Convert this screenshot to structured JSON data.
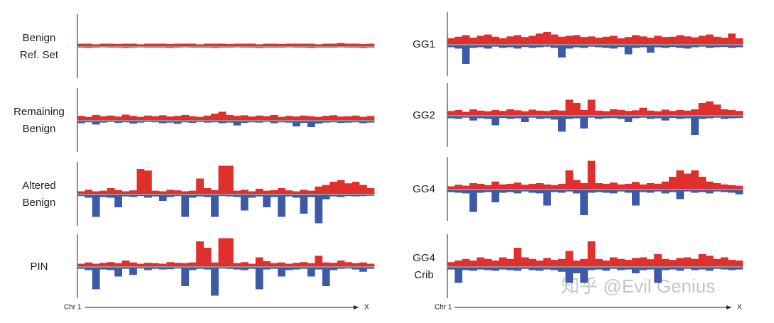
{
  "chart_data": [
    {
      "type": "area",
      "title": [
        "Benign",
        "Ref. Set"
      ],
      "ylim": [
        -10,
        10
      ],
      "series": [
        {
          "color": "#e0302e",
          "values": [
            1,
            1,
            0.8,
            1,
            1,
            0.9,
            1,
            1,
            0.8,
            1,
            1,
            1,
            0.9,
            1,
            1,
            1,
            0.8,
            1,
            1,
            1,
            0.9,
            1,
            1,
            1,
            0.8,
            1,
            1,
            0.9,
            1,
            1,
            1,
            1,
            0.8,
            1,
            1,
            1.2,
            1,
            1,
            0.9,
            1
          ]
        },
        {
          "color": "#3c5aa8",
          "values": [
            -0.3,
            -0.4,
            -0.3,
            -0.2,
            -0.3,
            -0.3,
            -0.4,
            -0.3,
            -0.2,
            -0.3,
            -0.3,
            -0.3,
            -0.4,
            -0.3,
            -0.2,
            -0.3,
            -0.3,
            -0.3,
            -0.4,
            -0.3,
            -0.3,
            -0.2,
            -0.3,
            -0.3,
            -0.4,
            -0.3,
            -0.3,
            -0.3,
            -0.2,
            -0.3,
            -0.3,
            -0.4,
            -0.3,
            -0.3,
            -0.3,
            -0.2,
            -0.3,
            -0.3,
            -0.4,
            -0.3
          ]
        }
      ]
    },
    {
      "type": "area",
      "title": [
        "Remaining",
        "Benign"
      ],
      "ylim": [
        -10,
        10
      ],
      "series": [
        {
          "color": "#e0302e",
          "values": [
            1.5,
            1.2,
            1.8,
            1.4,
            1.6,
            1.3,
            1.9,
            1.5,
            1.2,
            1.6,
            1.4,
            1.7,
            1.3,
            1.5,
            1.8,
            1.4,
            1.2,
            1.6,
            2.2,
            2.8,
            1.8,
            1.5,
            1.7,
            1.3,
            1.6,
            1.4,
            1.8,
            1.2,
            1.5,
            1.3,
            1.6,
            1.4,
            1.2,
            1.5,
            1.7,
            1.3,
            1.4,
            1.6,
            1.2,
            1.5
          ]
        },
        {
          "color": "#3c5aa8",
          "values": [
            -0.8,
            -0.5,
            -1.2,
            -0.6,
            -0.4,
            -0.7,
            -0.5,
            -0.9,
            -0.6,
            -0.4,
            -0.5,
            -0.8,
            -0.6,
            -1.0,
            -0.5,
            -0.7,
            -0.4,
            -0.6,
            -0.5,
            -0.8,
            -0.6,
            -1.5,
            -0.7,
            -0.5,
            -0.6,
            -0.4,
            -0.8,
            -0.5,
            -0.6,
            -1.8,
            -0.7,
            -2.0,
            -0.9,
            -0.6,
            -0.5,
            -0.7,
            -0.6,
            -0.5,
            -0.8,
            -0.6
          ]
        }
      ]
    },
    {
      "type": "area",
      "title": [
        "Altered",
        "Benign"
      ],
      "ylim": [
        -10,
        10
      ],
      "series": [
        {
          "color": "#e0302e",
          "values": [
            1,
            1.5,
            1,
            1.2,
            2,
            1.4,
            1,
            1.3,
            8,
            7.5,
            1.2,
            1,
            1.5,
            1.3,
            1,
            1.2,
            5,
            2,
            1.4,
            9,
            9,
            1.2,
            1.5,
            1,
            1.8,
            1.2,
            1.4,
            2,
            1.3,
            1,
            1.5,
            1.2,
            2.5,
            3,
            4,
            4.5,
            3.5,
            4,
            3,
            2
          ]
        },
        {
          "color": "#3c5aa8",
          "values": [
            -0.5,
            -1,
            -7,
            -0.8,
            -1,
            -4,
            -0.6,
            -0.8,
            -0.5,
            -1,
            -0.6,
            -2,
            -0.8,
            -0.5,
            -7,
            -1,
            -0.6,
            -0.8,
            -7,
            -0.5,
            -0.6,
            -0.8,
            -5,
            -1,
            -0.6,
            -4,
            -0.8,
            -7,
            -0.6,
            -1,
            -6,
            -0.8,
            -9,
            -1.5,
            -0.6,
            -0.8,
            -0.5,
            -0.6,
            -0.5,
            -0.4
          ]
        }
      ]
    },
    {
      "type": "area",
      "title": [
        "PIN"
      ],
      "ylim": [
        -10,
        10
      ],
      "series": [
        {
          "color": "#e0302e",
          "values": [
            1,
            1.4,
            1,
            1.3,
            1.5,
            1.2,
            2,
            1.4,
            1,
            1.3,
            1.2,
            1,
            1.5,
            1.3,
            1.2,
            1.4,
            8,
            6,
            1.4,
            9,
            9,
            1.2,
            1.5,
            1,
            3,
            1.8,
            1.2,
            1.4,
            1,
            1.3,
            1.5,
            1.2,
            3.5,
            1.4,
            1.3,
            2,
            1.5,
            1.2,
            1.4,
            1
          ]
        },
        {
          "color": "#3c5aa8",
          "values": [
            -0.6,
            -1,
            -7,
            -0.8,
            -1,
            -3,
            -0.6,
            -2.5,
            -0.5,
            -1,
            -0.6,
            -0.8,
            -0.7,
            -0.5,
            -6,
            -1,
            -0.6,
            -0.8,
            -9,
            -0.5,
            -0.6,
            -0.8,
            -1,
            -0.6,
            -7,
            -0.8,
            -0.6,
            -3,
            -1,
            -0.8,
            -0.6,
            -3,
            -0.8,
            -6,
            -1,
            -0.6,
            -0.5,
            -0.8,
            -1.5,
            -0.6
          ]
        }
      ]
    },
    {
      "type": "area",
      "title": [
        "GG1"
      ],
      "ylim": [
        -10,
        10
      ],
      "series": [
        {
          "color": "#e0302e",
          "values": [
            2,
            2.5,
            3,
            2.2,
            2.8,
            3.2,
            2.5,
            2,
            2.6,
            3,
            2.4,
            2.8,
            3.5,
            4,
            3.2,
            2.5,
            2.8,
            3,
            2.4,
            2.6,
            2.2,
            2.5,
            2.8,
            2,
            2.4,
            3,
            2.6,
            2.2,
            2.8,
            2.4,
            2.5,
            3,
            2.6,
            2.3,
            2.8,
            3.2,
            2.5,
            2.2,
            3.5,
            2
          ]
        },
        {
          "color": "#3c5aa8",
          "values": [
            -0.8,
            -1.2,
            -6,
            -1,
            -0.8,
            -1.2,
            -0.6,
            -1,
            -0.8,
            -1.2,
            -0.7,
            -1,
            -0.8,
            -0.6,
            -1,
            -4,
            -1.2,
            -0.8,
            -1,
            -0.6,
            -0.8,
            -1,
            -1.2,
            -0.7,
            -3,
            -1,
            -0.8,
            -2.5,
            -0.8,
            -1,
            -0.7,
            -1,
            -1.2,
            -0.8,
            -0.6,
            -1,
            -0.8,
            -0.7,
            -1,
            -0.8
          ]
        }
      ]
    },
    {
      "type": "area",
      "title": [
        "GG2"
      ],
      "ylim": [
        -10,
        10
      ],
      "series": [
        {
          "color": "#e0302e",
          "values": [
            1.5,
            1.8,
            1.2,
            2,
            1.6,
            1.4,
            1.8,
            1.5,
            2,
            1.7,
            1.4,
            1.9,
            1.6,
            1.5,
            1.8,
            1.6,
            5,
            4,
            1.8,
            5,
            1.6,
            1.4,
            2,
            1.8,
            1.5,
            1.7,
            2.5,
            1.6,
            1.4,
            1.9,
            1.5,
            1.8,
            1.6,
            2,
            4,
            4.5,
            3.5,
            2,
            1.8,
            1.5
          ]
        },
        {
          "color": "#3c5aa8",
          "values": [
            -0.8,
            -1,
            -0.6,
            -1.5,
            -0.8,
            -1,
            -3,
            -0.7,
            -1,
            -0.8,
            -2,
            -0.6,
            -1,
            -0.8,
            -1.2,
            -5,
            -1,
            -0.8,
            -4,
            -0.6,
            -1,
            -0.8,
            -0.7,
            -1,
            -2,
            -0.8,
            -0.6,
            -1,
            -0.8,
            -1.5,
            -0.7,
            -1,
            -0.8,
            -6,
            -1,
            -0.8,
            -0.6,
            -1,
            -0.8,
            -0.7
          ]
        }
      ]
    },
    {
      "type": "area",
      "title": [
        "GG4"
      ],
      "ylim": [
        -10,
        10
      ],
      "series": [
        {
          "color": "#e0302e",
          "values": [
            1,
            1.5,
            1.2,
            2,
            1.8,
            1.4,
            2.5,
            1.6,
            1.8,
            2.2,
            1.5,
            1.8,
            2,
            1.6,
            1.4,
            1.8,
            6,
            3,
            2,
            9,
            2,
            1.8,
            2.2,
            1.6,
            1.8,
            2.4,
            1.6,
            2,
            1.8,
            2.5,
            4,
            6,
            5,
            6,
            4,
            2.5,
            2,
            1.6,
            1.4,
            1.2
          ]
        },
        {
          "color": "#3c5aa8",
          "values": [
            -0.8,
            -1,
            -1.2,
            -7,
            -1,
            -0.8,
            -4,
            -1,
            -0.8,
            -1.2,
            -0.6,
            -1,
            -1.2,
            -5,
            -0.8,
            -1,
            -0.6,
            -1.2,
            -8,
            -1,
            -0.8,
            -1,
            -1.2,
            -0.6,
            -1,
            -5,
            -0.8,
            -1,
            -0.6,
            -1.2,
            -0.8,
            -3,
            -0.6,
            -1,
            -0.8,
            -1.2,
            -0.6,
            -0.8,
            -1,
            -1.5
          ]
        }
      ]
    },
    {
      "type": "area",
      "title": [
        "GG4",
        "Crib"
      ],
      "ylim": [
        -10,
        10
      ],
      "series": [
        {
          "color": "#e0302e",
          "values": [
            1.5,
            2,
            2.5,
            2,
            3,
            2.5,
            2,
            3,
            2.5,
            6,
            3,
            2.5,
            2,
            2.8,
            2.2,
            2.5,
            5,
            2,
            2.5,
            8,
            2.5,
            2,
            3,
            2.5,
            2.2,
            2.8,
            3,
            2.4,
            4,
            2.5,
            2.2,
            2.8,
            3,
            2.5,
            4,
            3.5,
            2.5,
            3,
            2.2,
            2
          ]
        },
        {
          "color": "#3c5aa8",
          "values": [
            -0.8,
            -5,
            -1,
            -1.2,
            -0.8,
            -1,
            -1.2,
            -0.8,
            -1,
            -1.2,
            -0.6,
            -1,
            -1.2,
            -0.8,
            -1,
            -1.5,
            -5,
            -2,
            -5,
            -1,
            -0.8,
            -1.2,
            -0.6,
            -1,
            -0.8,
            -2,
            -1,
            -0.8,
            -5,
            -1,
            -0.8,
            -1.2,
            -0.6,
            -1,
            -0.8,
            -1.2,
            -0.6,
            -0.8,
            -1,
            -0.8
          ]
        }
      ]
    }
  ],
  "axis_start": "Chr 1",
  "axis_end": "X",
  "watermark": "知乎 @Evil Genius"
}
